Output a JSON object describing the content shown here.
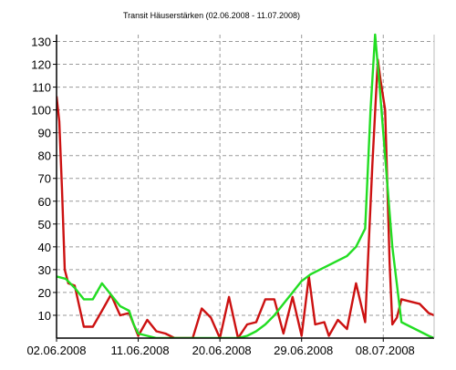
{
  "chart_data": {
    "type": "line",
    "title": "Transit Häuserstärken (02.06.2008 - 11.07.2008)",
    "xlabel": "",
    "ylabel": "",
    "x_ticks": [
      "02.06.2008",
      "11.06.2008",
      "20.06.2008",
      "29.06.2008",
      "08.07.2008"
    ],
    "y_ticks": [
      10,
      20,
      30,
      40,
      50,
      60,
      70,
      80,
      90,
      100,
      110,
      120,
      130
    ],
    "xlim": [
      0,
      41.6
    ],
    "ylim": [
      0,
      133
    ],
    "grid": true,
    "legend": "none",
    "series": [
      {
        "color": "#cc1111",
        "points": [
          [
            0,
            106
          ],
          [
            0.3,
            95
          ],
          [
            0.6,
            65
          ],
          [
            0.9,
            30
          ],
          [
            1.3,
            24
          ],
          [
            2,
            23
          ],
          [
            3,
            5
          ],
          [
            4,
            5
          ],
          [
            5,
            12
          ],
          [
            6,
            19
          ],
          [
            7,
            10
          ],
          [
            8,
            11
          ],
          [
            9,
            1
          ],
          [
            10,
            8
          ],
          [
            11,
            3
          ],
          [
            12,
            2
          ],
          [
            13,
            0
          ],
          [
            14,
            0
          ],
          [
            15,
            0
          ],
          [
            16,
            13
          ],
          [
            17,
            9
          ],
          [
            18,
            0
          ],
          [
            19,
            18
          ],
          [
            20,
            0
          ],
          [
            21,
            6
          ],
          [
            22,
            7
          ],
          [
            23,
            17
          ],
          [
            24,
            17
          ],
          [
            25,
            2
          ],
          [
            26,
            18
          ],
          [
            27,
            1
          ],
          [
            27.8,
            27
          ],
          [
            28.5,
            6
          ],
          [
            29.5,
            7
          ],
          [
            30,
            1
          ],
          [
            31,
            8
          ],
          [
            32,
            4
          ],
          [
            33,
            24
          ],
          [
            34,
            7
          ],
          [
            34.8,
            76
          ],
          [
            35.4,
            122
          ],
          [
            35.7,
            113
          ],
          [
            36.2,
            100
          ],
          [
            36.7,
            33
          ],
          [
            37,
            6
          ],
          [
            37.5,
            9
          ],
          [
            38,
            17
          ],
          [
            39,
            16
          ],
          [
            40,
            15
          ],
          [
            41,
            11
          ],
          [
            41.6,
            10
          ]
        ]
      },
      {
        "color": "#22dd22",
        "points": [
          [
            0,
            27
          ],
          [
            1,
            26
          ],
          [
            2,
            22
          ],
          [
            3,
            17
          ],
          [
            4,
            17
          ],
          [
            5,
            24
          ],
          [
            6,
            19
          ],
          [
            7,
            14
          ],
          [
            8,
            12
          ],
          [
            8.5,
            6
          ],
          [
            9,
            2
          ],
          [
            10,
            1
          ],
          [
            11,
            0
          ],
          [
            12,
            0
          ],
          [
            13,
            0
          ],
          [
            14,
            0
          ],
          [
            15,
            0
          ],
          [
            16,
            0
          ],
          [
            17,
            0
          ],
          [
            18,
            0
          ],
          [
            19,
            0
          ],
          [
            20,
            0
          ],
          [
            21,
            1
          ],
          [
            22,
            3
          ],
          [
            23,
            6
          ],
          [
            24,
            10
          ],
          [
            25,
            15
          ],
          [
            26,
            20
          ],
          [
            27,
            25
          ],
          [
            28,
            28
          ],
          [
            29,
            30
          ],
          [
            30,
            32
          ],
          [
            31,
            34
          ],
          [
            32,
            36
          ],
          [
            33,
            40
          ],
          [
            34,
            48
          ],
          [
            34.6,
            100
          ],
          [
            35.1,
            133
          ],
          [
            35.6,
            110
          ],
          [
            36.4,
            70
          ],
          [
            37,
            40
          ],
          [
            38,
            7
          ],
          [
            39,
            5
          ],
          [
            40,
            3
          ],
          [
            41,
            1
          ],
          [
            41.6,
            0
          ]
        ]
      }
    ]
  }
}
